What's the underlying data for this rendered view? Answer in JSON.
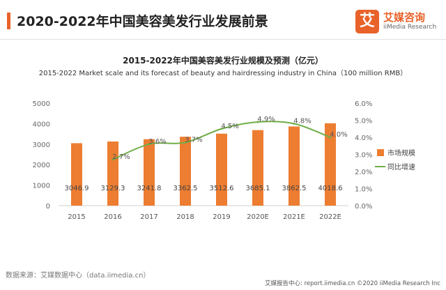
{
  "header": {
    "title": "2020-2022年中国美容美发行业发展前景",
    "brand_logo_char": "艾",
    "brand_name": "艾媒咨询",
    "brand_sub": "iiMedia Research"
  },
  "footer": {
    "source": "数据来源：艾媒数据中心（data.iimedia.cn）",
    "credit": "艾媒报告中心: report.iimedia.cn ©2020 iiMedia Research Inc"
  },
  "colors": {
    "accent": "#e8622a",
    "bar": "#ed7d31",
    "line": "#70ad47"
  },
  "chart_data": {
    "type": "bar",
    "title": "2015-2022年中国美容美发行业规模及预测（亿元）",
    "subtitle": "2015-2022 Market scale and its forecast of beauty and hairdressing industry in China（100 million RMB）",
    "categories": [
      "2015",
      "2016",
      "2017",
      "2018",
      "2019",
      "2020E",
      "2021E",
      "2022E"
    ],
    "series": [
      {
        "name": "市场规模",
        "type": "bar",
        "axis": "left",
        "values": [
          3046.9,
          3129.3,
          3241.8,
          3362.5,
          3512.6,
          3685.1,
          3862.5,
          4018.6
        ],
        "labels": [
          "3046.9",
          "3129.3",
          "3241.8",
          "3362.5",
          "3512.6",
          "3685.1",
          "3862.5",
          "4018.6"
        ]
      },
      {
        "name": "同比增速",
        "type": "line",
        "axis": "right",
        "values": [
          null,
          2.7,
          3.6,
          3.7,
          4.5,
          4.9,
          4.8,
          4.0
        ],
        "labels": [
          "",
          "2.7%",
          "3.6%",
          "3.7%",
          "4.5%",
          "4.9%",
          "4.8%",
          "4.0%"
        ]
      }
    ],
    "ylim": [
      0,
      5000
    ],
    "y2lim": [
      0,
      6
    ],
    "yticks": [
      "0",
      "1000",
      "2000",
      "3000",
      "4000",
      "5000"
    ],
    "y2ticks": [
      "0.0%",
      "1.0%",
      "2.0%",
      "3.0%",
      "4.0%",
      "5.0%",
      "6.0%"
    ],
    "grid": false,
    "legend": "right"
  }
}
